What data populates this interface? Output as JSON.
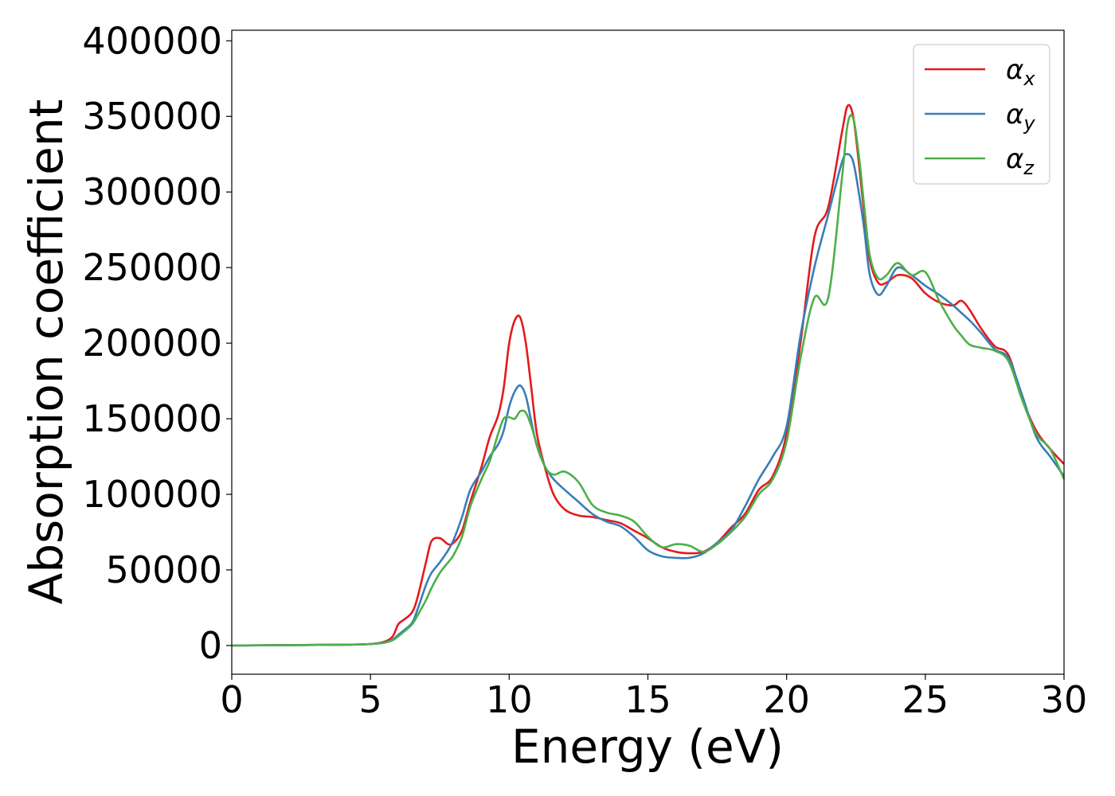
{
  "chart_data": {
    "type": "line",
    "title": "",
    "xlabel": "Energy (eV)",
    "ylabel": "Absorption coefficient",
    "xlim": [
      0,
      30
    ],
    "ylim": [
      -19000,
      407000
    ],
    "xticks": [
      0,
      5,
      10,
      15,
      20,
      25,
      30
    ],
    "yticks": [
      0,
      50000,
      100000,
      150000,
      200000,
      250000,
      300000,
      350000,
      400000
    ],
    "grid": false,
    "legend_position": "top-right",
    "series": [
      {
        "name": "αx",
        "legend_base": "α",
        "legend_sub": "x",
        "color": "#e41a1c",
        "x": [
          0,
          4,
          5,
          5.5,
          5.8,
          6.0,
          6.2,
          6.5,
          6.7,
          7.0,
          7.2,
          7.5,
          7.8,
          8.0,
          8.3,
          8.6,
          9.0,
          9.3,
          9.6,
          9.8,
          10.0,
          10.2,
          10.4,
          10.6,
          10.8,
          11.0,
          11.3,
          11.6,
          12.0,
          12.5,
          13.0,
          13.5,
          14.0,
          14.5,
          15.0,
          15.5,
          16.0,
          16.5,
          17.0,
          17.5,
          18.0,
          18.5,
          19.0,
          19.5,
          20.0,
          20.5,
          21.0,
          21.5,
          22.0,
          22.2,
          22.4,
          22.6,
          22.8,
          23.0,
          23.3,
          23.6,
          24.0,
          24.5,
          25.0,
          25.5,
          26.0,
          26.3,
          26.6,
          27.0,
          27.5,
          28.0,
          28.5,
          29.0,
          29.5,
          30.0
        ],
        "y": [
          0,
          500,
          1000,
          2500,
          6000,
          14000,
          17000,
          22000,
          32000,
          55000,
          69000,
          71000,
          67000,
          68000,
          76000,
          95000,
          118000,
          138000,
          152000,
          170000,
          200000,
          215000,
          217000,
          200000,
          170000,
          140000,
          117000,
          100000,
          90000,
          86000,
          85000,
          83000,
          81000,
          76000,
          71000,
          65000,
          62000,
          61000,
          62000,
          68000,
          78000,
          87000,
          103000,
          112000,
          140000,
          200000,
          270000,
          290000,
          340000,
          357000,
          350000,
          320000,
          285000,
          255000,
          240000,
          240000,
          245000,
          243000,
          233000,
          227000,
          225000,
          228000,
          222000,
          210000,
          198000,
          192000,
          163000,
          142000,
          130000,
          120000
        ]
      },
      {
        "name": "αy",
        "legend_base": "α",
        "legend_sub": "y",
        "color": "#377eb8",
        "x": [
          0,
          4,
          5,
          5.5,
          5.8,
          6.0,
          6.2,
          6.5,
          6.7,
          7.0,
          7.2,
          7.5,
          7.8,
          8.0,
          8.3,
          8.6,
          9.0,
          9.3,
          9.6,
          9.8,
          10.0,
          10.2,
          10.4,
          10.6,
          10.8,
          11.0,
          11.3,
          11.6,
          12.0,
          12.5,
          13.0,
          13.5,
          14.0,
          14.5,
          15.0,
          15.5,
          16.0,
          16.5,
          17.0,
          17.5,
          18.0,
          18.5,
          19.0,
          19.5,
          20.0,
          20.5,
          21.0,
          21.5,
          22.0,
          22.2,
          22.4,
          22.6,
          22.8,
          23.0,
          23.3,
          23.6,
          24.0,
          24.5,
          25.0,
          25.5,
          26.0,
          26.3,
          26.6,
          27.0,
          27.5,
          28.0,
          28.5,
          29.0,
          29.5,
          30.0
        ],
        "y": [
          0,
          500,
          1000,
          2000,
          4000,
          7000,
          10000,
          15000,
          24000,
          40000,
          48000,
          55000,
          63000,
          70000,
          85000,
          103000,
          115000,
          125000,
          133000,
          142000,
          158000,
          168000,
          172000,
          165000,
          148000,
          132000,
          118000,
          110000,
          103000,
          95000,
          87000,
          82000,
          79000,
          72000,
          63000,
          59000,
          58000,
          58000,
          61000,
          68000,
          76000,
          92000,
          110000,
          125000,
          145000,
          205000,
          250000,
          285000,
          320000,
          325000,
          320000,
          300000,
          275000,
          245000,
          232000,
          238000,
          250000,
          245000,
          238000,
          232000,
          225000,
          220000,
          215000,
          207000,
          196000,
          190000,
          165000,
          138000,
          125000,
          112000
        ]
      },
      {
        "name": "αz",
        "legend_base": "α",
        "legend_sub": "z",
        "color": "#4daf4a",
        "x": [
          0,
          4,
          5,
          5.5,
          5.8,
          6.0,
          6.2,
          6.5,
          6.7,
          7.0,
          7.2,
          7.5,
          7.8,
          8.0,
          8.3,
          8.6,
          9.0,
          9.3,
          9.6,
          9.8,
          10.0,
          10.2,
          10.4,
          10.6,
          10.8,
          11.0,
          11.3,
          11.6,
          12.0,
          12.5,
          13.0,
          13.5,
          14.0,
          14.5,
          15.0,
          15.5,
          16.0,
          16.5,
          17.0,
          17.5,
          18.0,
          18.5,
          19.0,
          19.5,
          20.0,
          20.5,
          21.0,
          21.5,
          22.0,
          22.2,
          22.4,
          22.6,
          22.8,
          23.0,
          23.3,
          23.6,
          24.0,
          24.5,
          25.0,
          25.5,
          26.0,
          26.3,
          26.6,
          27.0,
          27.5,
          28.0,
          28.5,
          29.0,
          29.5,
          30.0
        ],
        "y": [
          0,
          500,
          1000,
          1800,
          3500,
          6000,
          9000,
          14000,
          20000,
          30000,
          38000,
          48000,
          55000,
          60000,
          72000,
          92000,
          110000,
          122000,
          140000,
          150000,
          151000,
          150000,
          155000,
          154000,
          145000,
          133000,
          118000,
          113000,
          115000,
          108000,
          93000,
          88000,
          86000,
          82000,
          72000,
          65000,
          67000,
          66000,
          62000,
          67000,
          75000,
          85000,
          100000,
          110000,
          135000,
          190000,
          230000,
          230000,
          310000,
          345000,
          349000,
          325000,
          290000,
          258000,
          243000,
          245000,
          253000,
          245000,
          247000,
          228000,
          212000,
          205000,
          199000,
          197000,
          195000,
          188000,
          162000,
          140000,
          130000,
          110000
        ]
      }
    ]
  }
}
